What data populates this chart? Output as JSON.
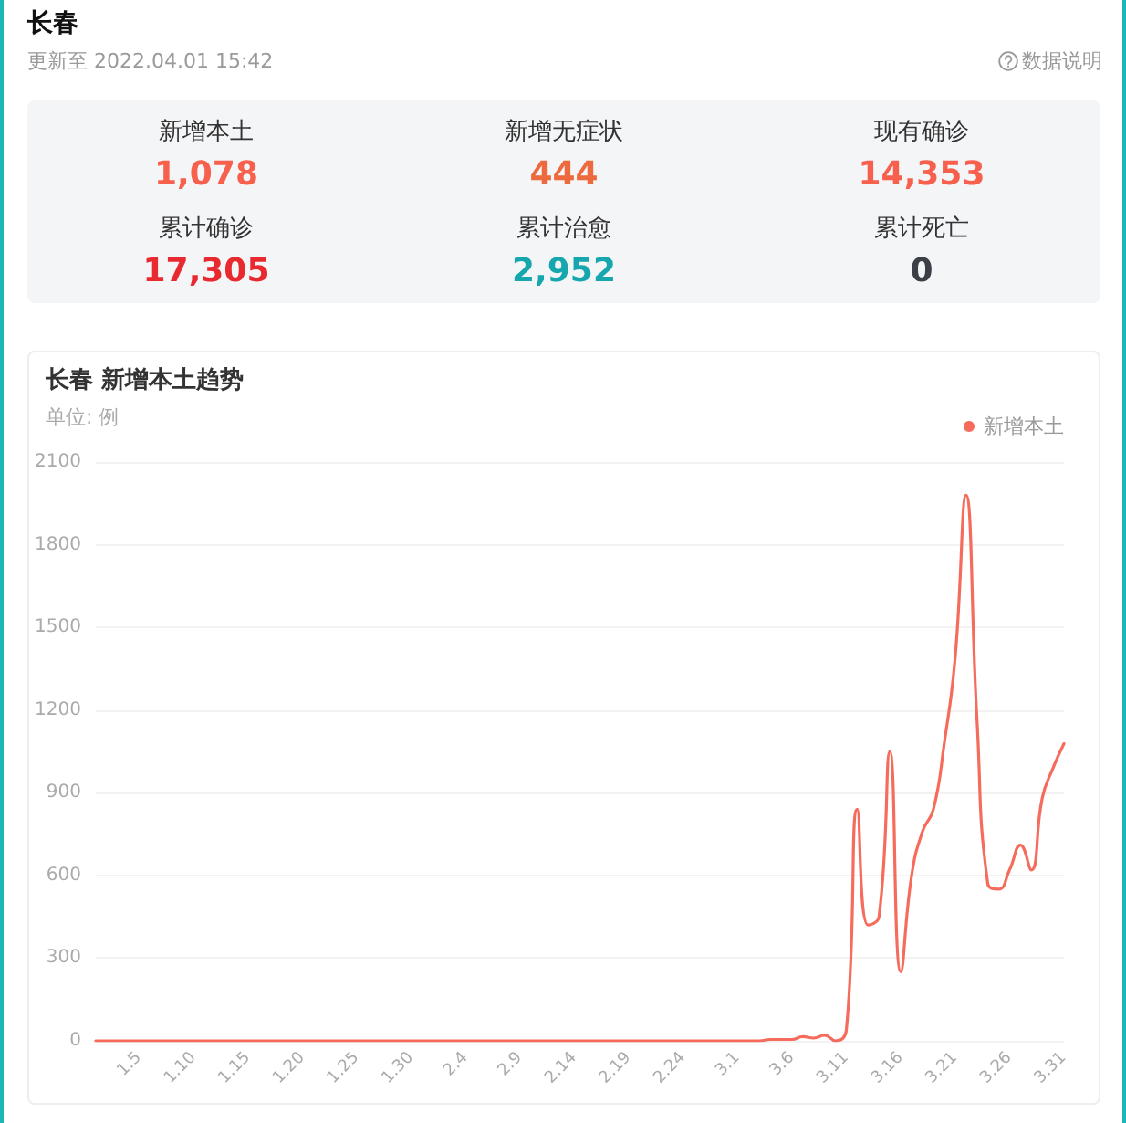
{
  "chart_data": [
    {
      "type": "other",
      "title": "长春",
      "subtitle": "更新至 2022.04.01 15:42",
      "annotations": [
        "数据说明",
        "新增本土",
        "1,078",
        "新增无症状",
        "444",
        "现有确诊",
        "14,353",
        "累计确诊",
        "17,305",
        "累计治愈",
        "2,952",
        "累计死亡",
        "0"
      ]
    },
    {
      "type": "line",
      "title": "长春 新增本土趋势",
      "ylabel": "单位: 例",
      "categories": [
        null,
        null,
        null,
        null,
        "1.5",
        null,
        null,
        null,
        null,
        "1.10",
        null,
        null,
        null,
        null,
        "1.15",
        null,
        null,
        null,
        null,
        "1.20",
        null,
        null,
        null,
        null,
        "1.25",
        null,
        null,
        null,
        null,
        "1.30",
        null,
        null,
        null,
        null,
        "2.4",
        null,
        null,
        null,
        null,
        "2.9",
        null,
        null,
        null,
        null,
        "2.14",
        null,
        null,
        null,
        null,
        "2.19",
        null,
        null,
        null,
        null,
        "2.24",
        null,
        null,
        null,
        null,
        "3.1",
        null,
        null,
        null,
        null,
        "3.6",
        null,
        null,
        null,
        null,
        "3.11",
        null,
        null,
        null,
        null,
        "3.16",
        null,
        null,
        null,
        null,
        "3.21",
        null,
        null,
        null,
        null,
        "3.26",
        null,
        null,
        null,
        null,
        "3.31"
      ],
      "series": [
        {
          "name": "新增本土",
          "color": "#f56c5c",
          "values": [
            0,
            0,
            0,
            0,
            0,
            0,
            0,
            0,
            0,
            0,
            0,
            0,
            0,
            0,
            0,
            0,
            0,
            0,
            0,
            0,
            0,
            0,
            0,
            0,
            0,
            0,
            0,
            0,
            0,
            0,
            0,
            0,
            0,
            0,
            0,
            0,
            0,
            0,
            0,
            0,
            0,
            0,
            0,
            0,
            0,
            0,
            0,
            0,
            0,
            0,
            0,
            0,
            0,
            0,
            0,
            0,
            0,
            0,
            0,
            0,
            0,
            0,
            5,
            5,
            5,
            15,
            10,
            20,
            0,
            40,
            840,
            420,
            450,
            1050,
            250,
            600,
            760,
            840,
            1080,
            1390,
            1980,
            1170,
            570,
            550,
            620,
            710,
            620,
            880,
            990,
            1078
          ]
        }
      ],
      "ylim": [
        0,
        2100
      ],
      "yticks": [
        0,
        300,
        600,
        900,
        1200,
        1500,
        1800,
        2100
      ],
      "grid": "y",
      "legend": "top right",
      "marker": "none"
    }
  ]
}
